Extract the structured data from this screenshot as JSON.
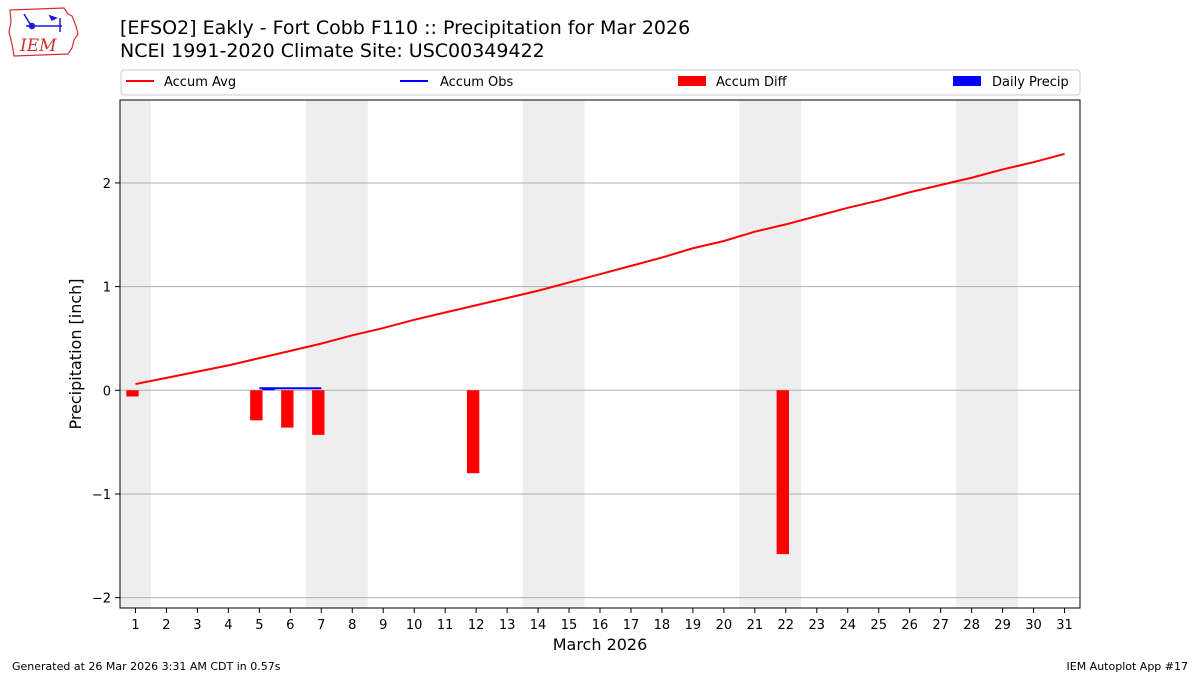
{
  "header": {
    "title_line1": "[EFSO2] Eakly - Fort Cobb F110 :: Precipitation for Mar 2026",
    "title_line2": "NCEI 1991-2020 Climate Site: USC00349422"
  },
  "footer": {
    "left": "Generated at 26 Mar 2026 3:31 AM CDT in 0.57s",
    "right": "IEM Autoplot App #17"
  },
  "logo": {
    "text": "IEM",
    "icon": "iem-iowa-logo-icon"
  },
  "colors": {
    "avg": "#ff0000",
    "obs": "#0000ff",
    "diff": "#ff0000",
    "daily": "#0000ff",
    "weekend": "#eeeeee",
    "grid": "#b0b0b0"
  },
  "chart_data": {
    "type": "line",
    "title": "[EFSO2] Eakly - Fort Cobb F110 :: Precipitation for Mar 2026",
    "xlabel": "March 2026",
    "ylabel": "Precipitation [inch]",
    "xlim": [
      0.5,
      31.5
    ],
    "ylim": [
      -2.1,
      2.8
    ],
    "grid": true,
    "legend_position": "top",
    "yticks": [
      -2,
      -1,
      0,
      1,
      2
    ],
    "ytick_labels": [
      "−2",
      "−1",
      "0",
      "1",
      "2"
    ],
    "xticks": [
      1,
      2,
      3,
      4,
      5,
      6,
      7,
      8,
      9,
      10,
      11,
      12,
      13,
      14,
      15,
      16,
      17,
      18,
      19,
      20,
      21,
      22,
      23,
      24,
      25,
      26,
      27,
      28,
      29,
      30,
      31
    ],
    "weekend_spans": [
      [
        0.5,
        1.5
      ],
      [
        6.5,
        8.5
      ],
      [
        13.5,
        15.5
      ],
      [
        20.5,
        22.5
      ],
      [
        27.5,
        29.5
      ]
    ],
    "legend": [
      "Accum Avg",
      "Accum Obs",
      "Accum Diff",
      "Daily Precip"
    ],
    "series": [
      {
        "name": "Accum Avg",
        "kind": "line",
        "x": [
          1,
          2,
          3,
          4,
          5,
          6,
          7,
          8,
          9,
          10,
          11,
          12,
          13,
          14,
          15,
          16,
          17,
          18,
          19,
          20,
          21,
          22,
          23,
          24,
          25,
          26,
          27,
          28,
          29,
          30,
          31
        ],
        "values": [
          0.06,
          0.12,
          0.18,
          0.24,
          0.31,
          0.38,
          0.45,
          0.53,
          0.6,
          0.68,
          0.75,
          0.82,
          0.89,
          0.96,
          1.04,
          1.12,
          1.2,
          1.28,
          1.37,
          1.44,
          1.53,
          1.6,
          1.68,
          1.76,
          1.83,
          1.91,
          1.98,
          2.05,
          2.13,
          2.2,
          2.28
        ]
      },
      {
        "name": "Accum Obs",
        "kind": "line",
        "x": [
          5,
          6,
          7
        ],
        "values": [
          0.02,
          0.02,
          0.02
        ]
      },
      {
        "name": "Accum Diff",
        "kind": "bar",
        "x": [
          1,
          5,
          6,
          7,
          12,
          22
        ],
        "values": [
          -0.06,
          -0.29,
          -0.36,
          -0.43,
          -0.8,
          -1.58
        ]
      },
      {
        "name": "Daily Precip",
        "kind": "bar",
        "x": [
          5
        ],
        "values": [
          0.02
        ]
      }
    ]
  }
}
